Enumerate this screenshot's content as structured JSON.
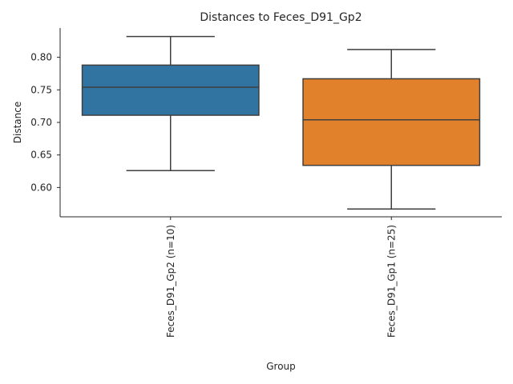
{
  "chart_data": {
    "type": "box",
    "title": "Distances to Feces_D91_Gp2",
    "xlabel": "Group",
    "ylabel": "Distance",
    "ylim": [
      0.555,
      0.845
    ],
    "yticks": [
      0.6,
      0.65,
      0.7,
      0.75,
      0.8
    ],
    "ytick_labels": [
      "0.60",
      "0.65",
      "0.70",
      "0.75",
      "0.80"
    ],
    "grid": false,
    "categories": [
      "Feces_D91_Gp2 (n=10)",
      "Feces_D91_Gp1 (n=25)"
    ],
    "boxes": [
      {
        "category": "Feces_D91_Gp2 (n=10)",
        "whisker_low": 0.626,
        "q1": 0.711,
        "median": 0.754,
        "q3": 0.788,
        "whisker_high": 0.832,
        "color": "#3274a1"
      },
      {
        "category": "Feces_D91_Gp1 (n=25)",
        "whisker_low": 0.567,
        "q1": 0.634,
        "median": 0.704,
        "q3": 0.767,
        "whisker_high": 0.812,
        "color": "#e1812c"
      }
    ]
  }
}
